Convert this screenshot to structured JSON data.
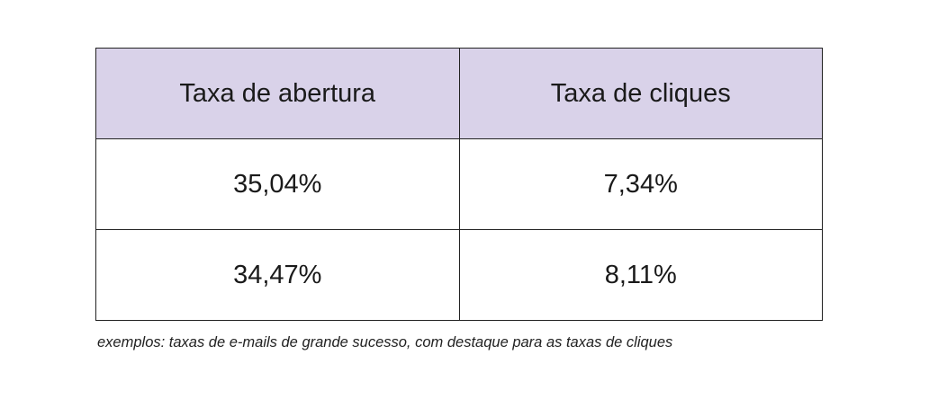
{
  "table": {
    "headers": [
      "Taxa de abertura",
      "Taxa de cliques"
    ],
    "rows": [
      [
        "35,04%",
        "7,34%"
      ],
      [
        "34,47%",
        "8,11%"
      ]
    ]
  },
  "caption": "exemplos: taxas de e-mails de grande sucesso, com destaque para as taxas de cliques",
  "colors": {
    "header_background": "#d9d2e9",
    "border": "#222222"
  }
}
